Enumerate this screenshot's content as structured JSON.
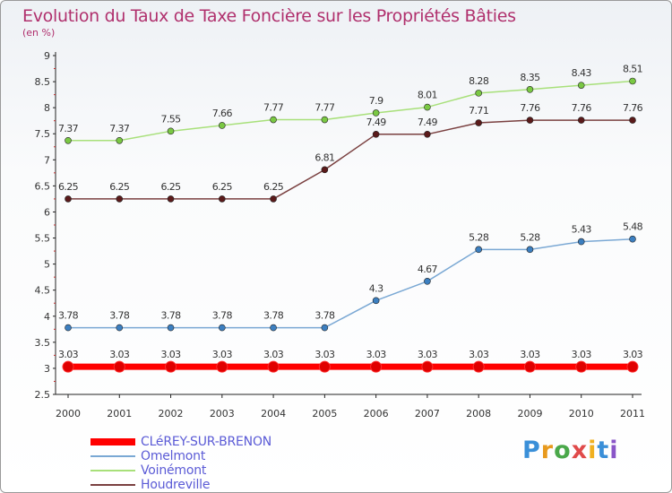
{
  "title": "Evolution du Taux de Taxe Foncière sur les Propriétés Bâties",
  "subtitle": "(en %)",
  "logo": {
    "text": "Proxiti",
    "colors": [
      "#3a8fd8",
      "#e89a1e",
      "#4aa84a",
      "#e04a4a",
      "#f0b020",
      "#3a8fd8",
      "#8a56c8"
    ]
  },
  "chart_data": {
    "type": "line",
    "title": "Evolution du Taux de Taxe Foncière sur les Propriétés Bâties",
    "ylabel": "(en %)",
    "xlabel": "",
    "x": [
      "2000",
      "2001",
      "2002",
      "2003",
      "2004",
      "2005",
      "2006",
      "2007",
      "2008",
      "2009",
      "2010",
      "2011"
    ],
    "ylim": [
      2.5,
      9
    ],
    "yticks": [
      "2.5",
      "3",
      "3.5",
      "4",
      "4.5",
      "5",
      "5.5",
      "6",
      "6.5",
      "7",
      "7.5",
      "8",
      "8.5",
      "9"
    ],
    "grid": false,
    "legend_position": "bottom-left",
    "series": [
      {
        "name": "CLéREY-SUR-BRENON",
        "color": "#ff0000",
        "marker": "#e00000",
        "width": 7,
        "values": [
          3.03,
          3.03,
          3.03,
          3.03,
          3.03,
          3.03,
          3.03,
          3.03,
          3.03,
          3.03,
          3.03,
          3.03
        ],
        "labels": [
          "3.03",
          "3.03",
          "3.03",
          "3.03",
          "3.03",
          "3.03",
          "3.03",
          "3.03",
          "3.03",
          "3.03",
          "3.03",
          "3.03"
        ]
      },
      {
        "name": "Omelmont",
        "color": "#7aa8d4",
        "marker": "#3c7fc0",
        "width": 1.5,
        "values": [
          3.78,
          3.78,
          3.78,
          3.78,
          3.78,
          3.78,
          4.3,
          4.67,
          5.28,
          5.28,
          5.43,
          5.48
        ],
        "labels": [
          "3.78",
          "3.78",
          "3.78",
          "3.78",
          "3.78",
          "3.78",
          "4.3",
          "4.67",
          "5.28",
          "5.28",
          "5.43",
          "5.48"
        ]
      },
      {
        "name": "Voinémont",
        "color": "#a8e07a",
        "marker": "#7ac843",
        "width": 1.5,
        "values": [
          7.37,
          7.37,
          7.55,
          7.66,
          7.77,
          7.77,
          7.9,
          8.01,
          8.28,
          8.35,
          8.43,
          8.51
        ],
        "labels": [
          "7.37",
          "7.37",
          "7.55",
          "7.66",
          "7.77",
          "7.77",
          "7.9",
          "8.01",
          "8.28",
          "8.35",
          "8.43",
          "8.51"
        ]
      },
      {
        "name": "Houdreville",
        "color": "#7a4040",
        "marker": "#5a1a1a",
        "width": 1.5,
        "values": [
          6.25,
          6.25,
          6.25,
          6.25,
          6.25,
          6.81,
          7.49,
          7.49,
          7.71,
          7.76,
          7.76,
          7.76
        ],
        "labels": [
          "6.25",
          "6.25",
          "6.25",
          "6.25",
          "6.25",
          "6.81",
          "7.49",
          "7.49",
          "7.71",
          "7.76",
          "7.76",
          "7.76"
        ]
      }
    ]
  }
}
